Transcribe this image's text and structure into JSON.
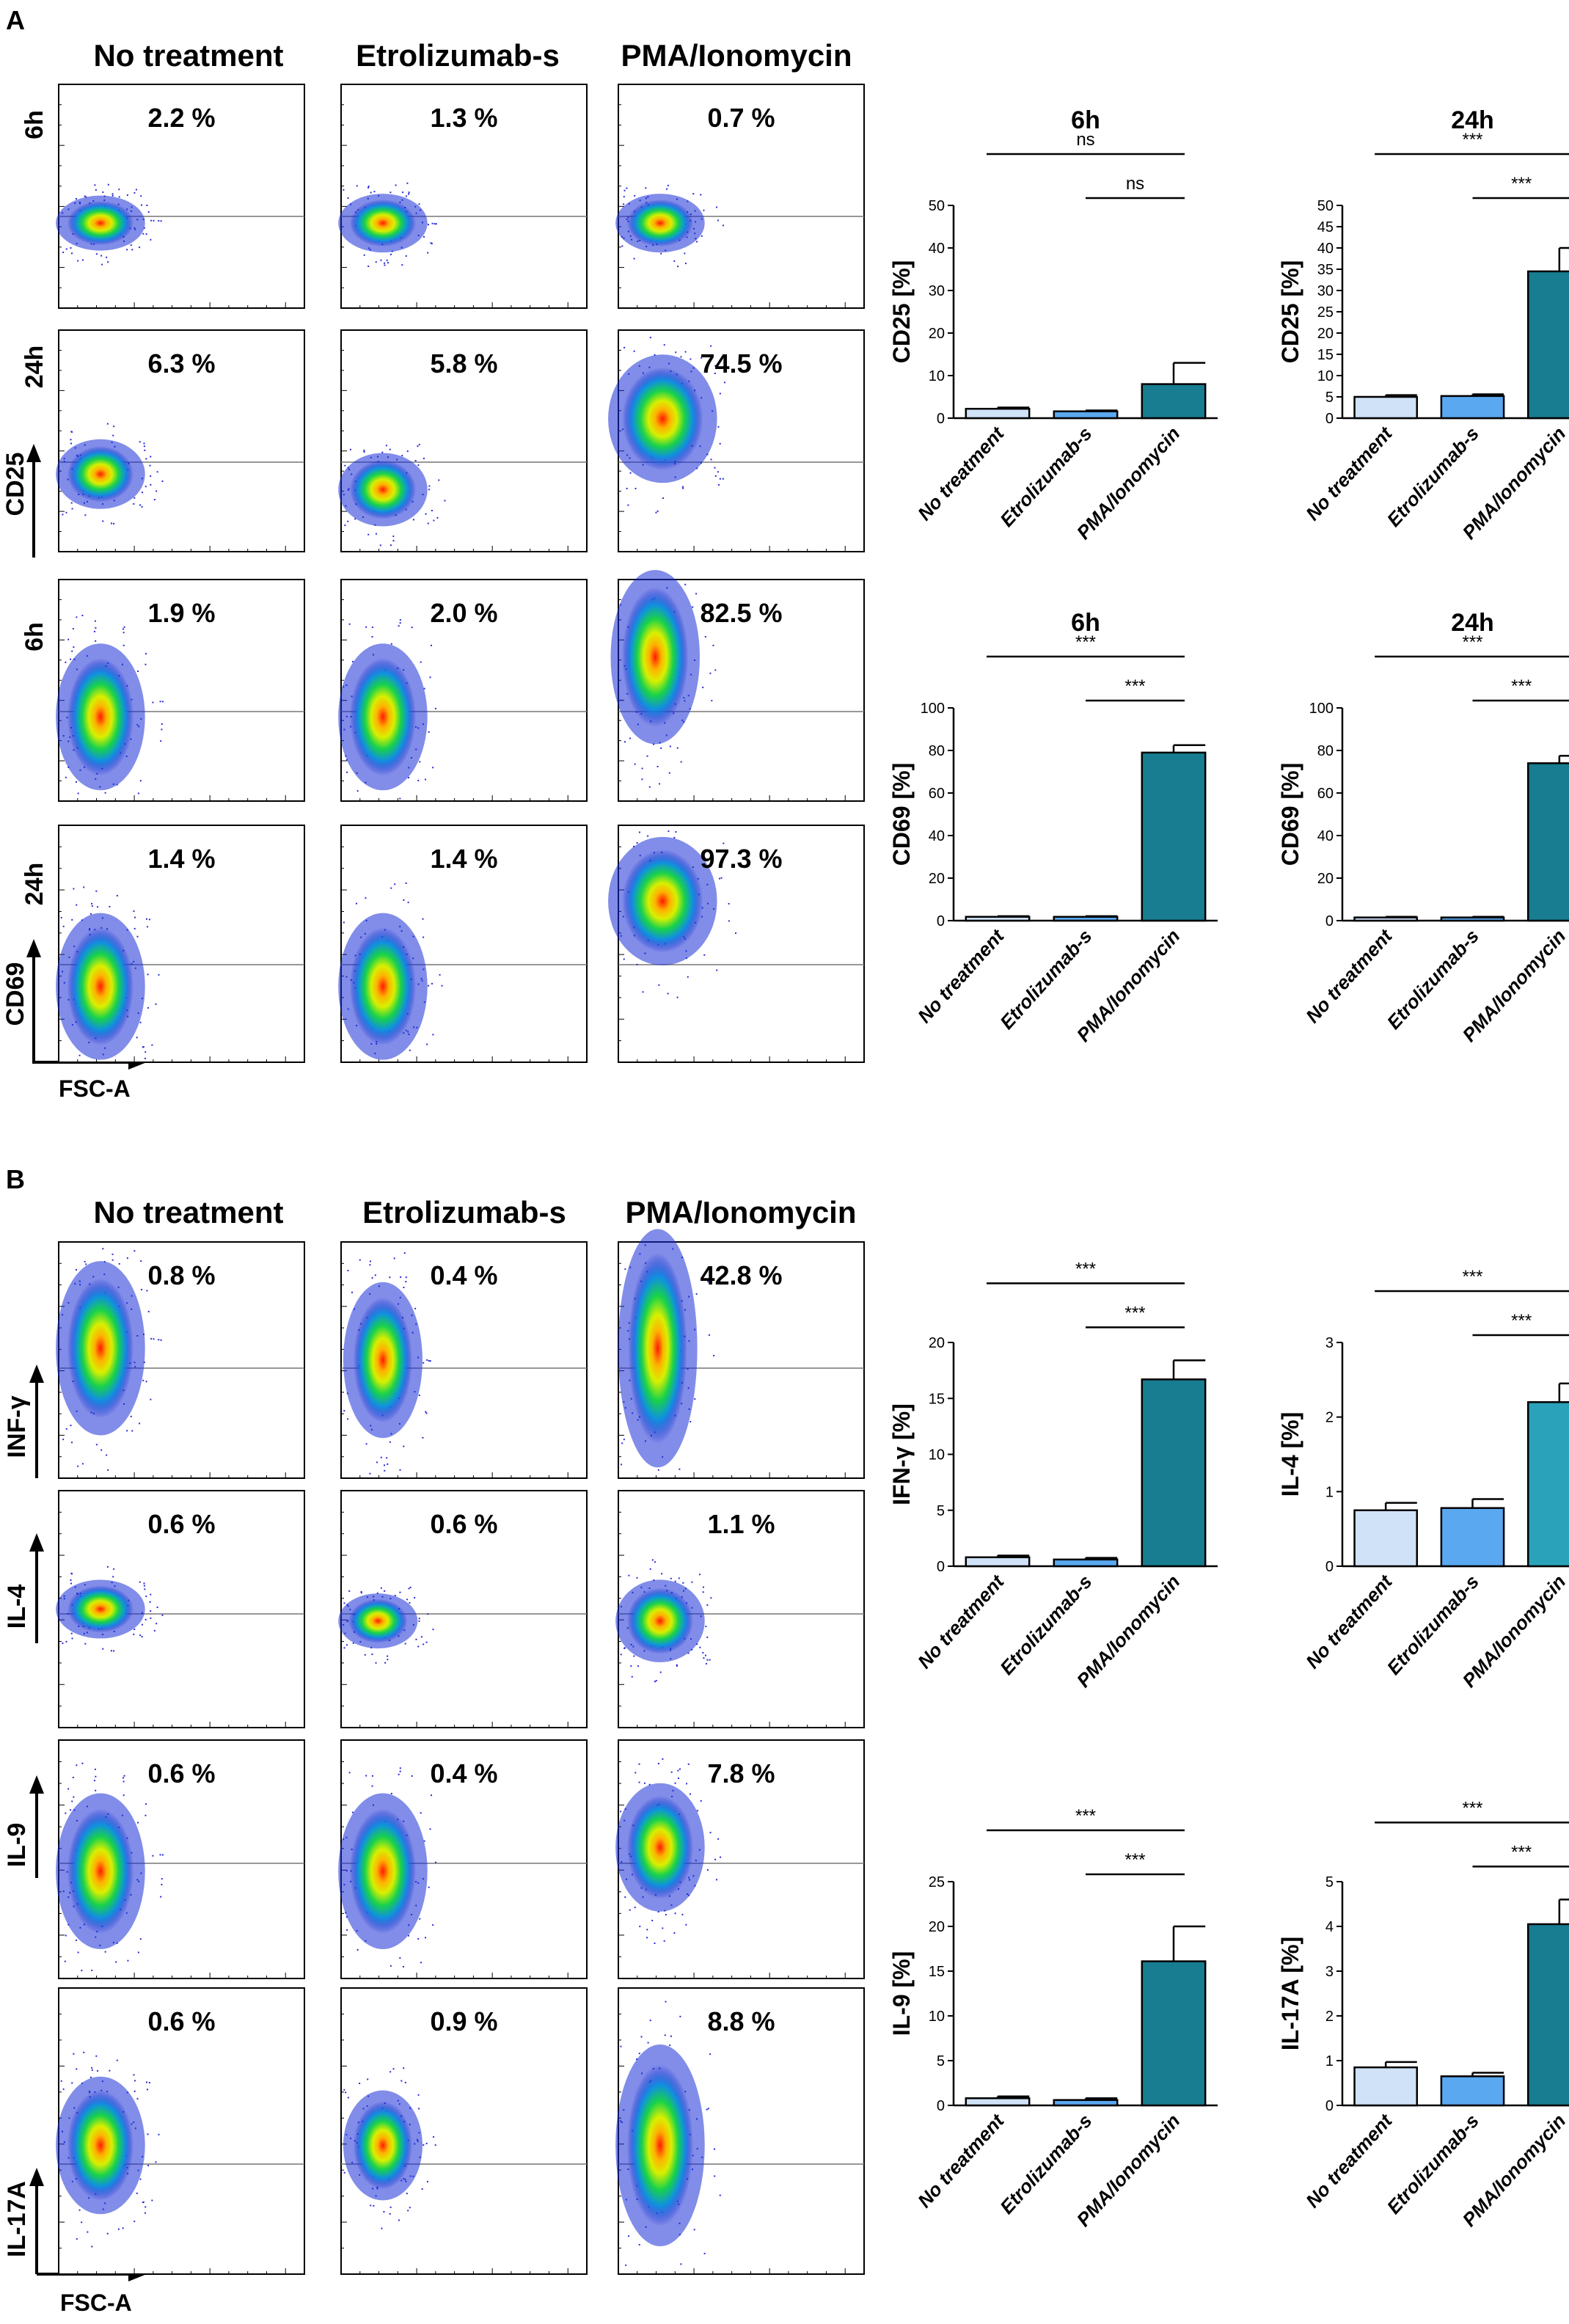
{
  "panels": [
    {
      "letter": "A",
      "columns": [
        "No treatment",
        "Etrolizumab-s",
        "PMA/Ionomycin"
      ],
      "groups": [
        {
          "marker": "CD25",
          "times": [
            "6h",
            "24h"
          ]
        },
        {
          "marker": "CD69",
          "times": [
            "6h",
            "24h"
          ]
        }
      ],
      "rows": [
        {
          "time": "6h",
          "marker": "CD25",
          "pct": [
            "2.2 %",
            "1.3 %",
            "0.7 %"
          ]
        },
        {
          "time": "24h",
          "marker": "CD25",
          "pct": [
            "6.3 %",
            "5.8 %",
            "74.5 %"
          ]
        },
        {
          "time": "6h",
          "marker": "CD69",
          "pct": [
            "1.9 %",
            "2.0 %",
            "82.5 %"
          ]
        },
        {
          "time": "24h",
          "marker": "CD69",
          "pct": [
            "1.4 %",
            "1.4 %",
            "97.3 %"
          ]
        }
      ],
      "x_axis_label": "FSC-A"
    },
    {
      "letter": "B",
      "columns": [
        "No treatment",
        "Etrolizumab-s",
        "PMA/Ionomycin"
      ],
      "rows": [
        {
          "marker": "INF-γ",
          "pct": [
            "0.8 %",
            "0.4 %",
            "42.8 %"
          ]
        },
        {
          "marker": "IL-4",
          "pct": [
            "0.6 %",
            "0.6 %",
            "1.1 %"
          ]
        },
        {
          "marker": "IL-9",
          "pct": [
            "0.6 %",
            "0.4 %",
            "7.8 %"
          ]
        },
        {
          "marker": "IL-17A",
          "pct": [
            "0.6 %",
            "0.9 %",
            "8.8 %"
          ]
        }
      ],
      "x_axis_label": "FSC-A"
    }
  ],
  "colors": {
    "bar_light": "#cfe2f7",
    "bar_mid": "#5aa8ef",
    "bar_dark": "#187d91",
    "bar_teal": "#2aa2b9"
  },
  "chart_data": [
    {
      "type": "bar",
      "title": "6h",
      "ylabel": "CD25 [%]",
      "ylim": [
        0,
        50
      ],
      "ticks": [
        0,
        10,
        20,
        30,
        40,
        50
      ],
      "categories": [
        "No treatment",
        "Etrolizumab-s",
        "PMA/Ionomycin"
      ],
      "values": [
        2.2,
        1.6,
        8.0
      ],
      "errors": [
        0.3,
        0.2,
        5.0
      ],
      "significance": [
        {
          "from": 0,
          "to": 2,
          "label": "ns"
        },
        {
          "from": 1,
          "to": 2,
          "label": "ns"
        }
      ]
    },
    {
      "type": "bar",
      "title": "24h",
      "ylabel": "CD25 [%]",
      "ylim": [
        0,
        50
      ],
      "ticks": [
        0,
        5,
        10,
        15,
        20,
        25,
        30,
        35,
        40,
        45,
        50
      ],
      "categories": [
        "No treatment",
        "Etrolizumab-s",
        "PMA/Ionomycin"
      ],
      "values": [
        5.0,
        5.2,
        34.5
      ],
      "errors": [
        0.4,
        0.4,
        5.5
      ],
      "significance": [
        {
          "from": 0,
          "to": 2,
          "label": "***"
        },
        {
          "from": 1,
          "to": 2,
          "label": "***"
        }
      ]
    },
    {
      "type": "bar",
      "title": "6h",
      "ylabel": "CD69 [%]",
      "ylim": [
        0,
        100
      ],
      "ticks": [
        0,
        20,
        40,
        60,
        80,
        100
      ],
      "categories": [
        "No treatment",
        "Etrolizumab-s",
        "PMA/Ionomycin"
      ],
      "values": [
        1.8,
        1.8,
        79.0
      ],
      "errors": [
        0.3,
        0.3,
        3.5
      ],
      "significance": [
        {
          "from": 0,
          "to": 2,
          "label": "***"
        },
        {
          "from": 1,
          "to": 2,
          "label": "***"
        }
      ]
    },
    {
      "type": "bar",
      "title": "24h",
      "ylabel": "CD69 [%]",
      "ylim": [
        0,
        100
      ],
      "ticks": [
        0,
        20,
        40,
        60,
        80,
        100
      ],
      "categories": [
        "No treatment",
        "Etrolizumab-s",
        "PMA/Ionomycin"
      ],
      "values": [
        1.5,
        1.5,
        74.0
      ],
      "errors": [
        0.3,
        0.3,
        3.5
      ],
      "significance": [
        {
          "from": 0,
          "to": 2,
          "label": "***"
        },
        {
          "from": 1,
          "to": 2,
          "label": "***"
        }
      ]
    },
    {
      "type": "bar",
      "title": "",
      "ylabel": "IFN-γ [%]",
      "ylim": [
        0,
        20
      ],
      "ticks": [
        0,
        5,
        10,
        15,
        20
      ],
      "categories": [
        "No treatment",
        "Etrolizumab-s",
        "PMA/Ionomycin"
      ],
      "values": [
        0.8,
        0.6,
        16.7
      ],
      "errors": [
        0.15,
        0.15,
        1.7
      ],
      "significance": [
        {
          "from": 0,
          "to": 2,
          "label": "***"
        },
        {
          "from": 1,
          "to": 2,
          "label": "***"
        }
      ]
    },
    {
      "type": "bar",
      "title": "",
      "ylabel": "IL-4 [%]",
      "ylim": [
        0,
        3
      ],
      "ticks": [
        0,
        1,
        2,
        3
      ],
      "categories": [
        "No treatment",
        "Etrolizumab-s",
        "PMA/Ionomycin"
      ],
      "values": [
        0.75,
        0.78,
        2.2
      ],
      "errors": [
        0.1,
        0.12,
        0.25
      ],
      "significance": [
        {
          "from": 0,
          "to": 2,
          "label": "***"
        },
        {
          "from": 1,
          "to": 2,
          "label": "***"
        }
      ]
    },
    {
      "type": "bar",
      "title": "",
      "ylabel": "IL-9 [%]",
      "ylim": [
        0,
        25
      ],
      "ticks": [
        0,
        5,
        10,
        15,
        20,
        25
      ],
      "categories": [
        "No treatment",
        "Etrolizumab-s",
        "PMA/Ionomycin"
      ],
      "values": [
        0.8,
        0.6,
        16.1
      ],
      "errors": [
        0.2,
        0.2,
        3.9
      ],
      "significance": [
        {
          "from": 0,
          "to": 2,
          "label": "***"
        },
        {
          "from": 1,
          "to": 2,
          "label": "***"
        }
      ]
    },
    {
      "type": "bar",
      "title": "",
      "ylabel": "IL-17A [%]",
      "ylim": [
        0,
        5
      ],
      "ticks": [
        0,
        1,
        2,
        3,
        4,
        5
      ],
      "categories": [
        "No treatment",
        "Etrolizumab-s",
        "PMA/Ionomycin"
      ],
      "values": [
        0.85,
        0.65,
        4.05
      ],
      "errors": [
        0.12,
        0.08,
        0.55
      ],
      "significance": [
        {
          "from": 0,
          "to": 2,
          "label": "***"
        },
        {
          "from": 1,
          "to": 2,
          "label": "***"
        }
      ]
    }
  ]
}
